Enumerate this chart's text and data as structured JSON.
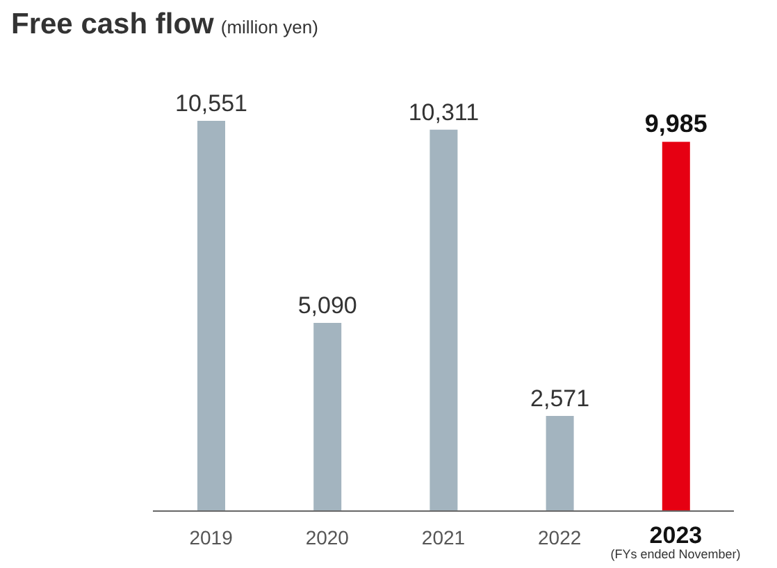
{
  "chart_data": {
    "type": "bar",
    "title": "Free cash flow",
    "subtitle": "(million yen)",
    "categories": [
      "2019",
      "2020",
      "2021",
      "2022",
      "2023"
    ],
    "values": [
      10551,
      5090,
      10311,
      2571,
      9985
    ],
    "colors": [
      "#a3b4bf",
      "#a3b4bf",
      "#a3b4bf",
      "#a3b4bf",
      "#e60012"
    ],
    "value_labels": [
      "10,551",
      "5,090",
      "10,311",
      "2,571",
      "9,985"
    ],
    "annotations": [
      "(FYs ended November)"
    ]
  }
}
